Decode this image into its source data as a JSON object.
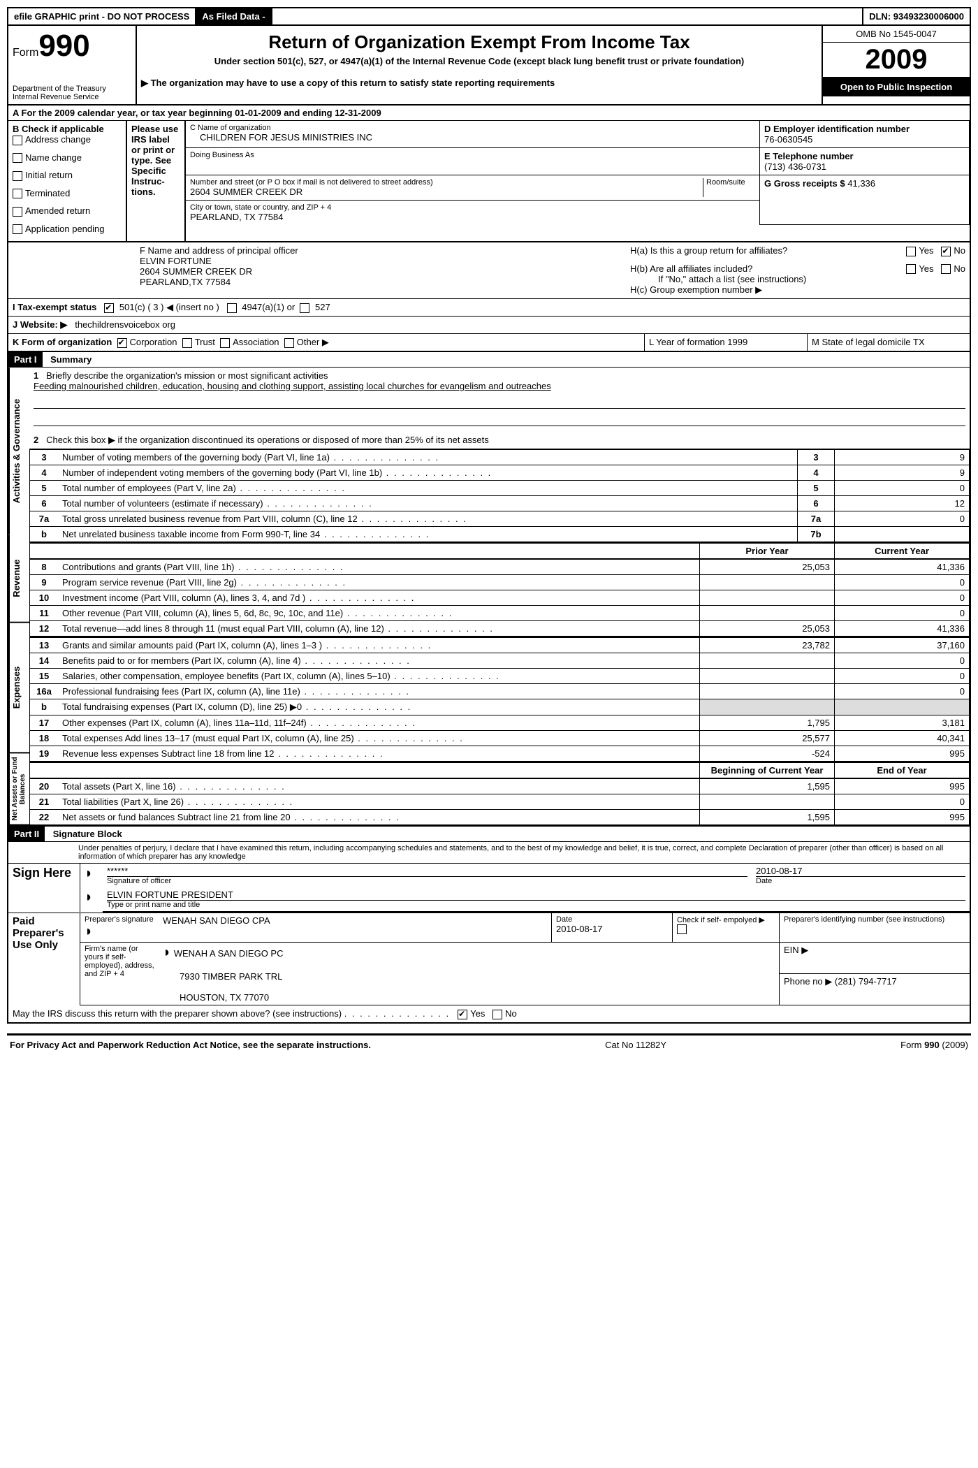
{
  "topbar": {
    "efile": "efile GRAPHIC print - DO NOT PROCESS",
    "asfiled": "As Filed Data -",
    "dln_label": "DLN:",
    "dln": "93493230006000"
  },
  "header": {
    "form_label": "Form",
    "form_number": "990",
    "dept1": "Department of the Treasury",
    "dept2": "Internal Revenue Service",
    "title": "Return of Organization Exempt From Income Tax",
    "subtitle": "Under section 501(c), 527, or 4947(a)(1) of the Internal Revenue Code (except black lung benefit trust or private foundation)",
    "copy_note": "▶ The organization may have to use a copy of this return to satisfy state reporting requirements",
    "omb": "OMB No 1545-0047",
    "year": "2009",
    "inspection": "Open to Public Inspection"
  },
  "lineA": "A  For the 2009 calendar year, or tax year beginning 01-01-2009    and ending 12-31-2009",
  "boxB": {
    "title": "B  Check if applicable",
    "items": [
      "Address change",
      "Name change",
      "Initial return",
      "Terminated",
      "Amended return",
      "Application pending"
    ],
    "irs_note": "Please use IRS label or print or type. See Specific Instruc- tions."
  },
  "boxC": {
    "name_label": "C Name of organization",
    "name": "CHILDREN FOR JESUS MINISTRIES INC",
    "dba_label": "Doing Business As",
    "street_label": "Number and street (or P O  box if mail is not delivered to street address)",
    "room_label": "Room/suite",
    "street": "2604 SUMMER CREEK DR",
    "city_label": "City or town, state or country, and ZIP + 4",
    "city": "PEARLAND, TX  77584"
  },
  "boxD": {
    "label": "D Employer identification number",
    "value": "76-0630545"
  },
  "boxE": {
    "label": "E Telephone number",
    "value": "(713) 436-0731"
  },
  "boxG": {
    "label": "G Gross receipts $",
    "value": "41,336"
  },
  "boxF": {
    "label": "F   Name and address of principal officer",
    "name": "ELVIN FORTUNE",
    "street": "2604 SUMMER CREEK DR",
    "city": "PEARLAND,TX  77584"
  },
  "boxH": {
    "ha": "H(a)  Is this a group return for affiliates?",
    "hb": "H(b)  Are all affiliates included?",
    "hb_note": "If \"No,\" attach a list  (see instructions)",
    "hc": "H(c)   Group exemption number ▶"
  },
  "lineI": {
    "label": "I   Tax-exempt status",
    "opt1": "501(c) ( 3 ) ◀ (insert no )",
    "opt2": "4947(a)(1) or",
    "opt3": "527"
  },
  "lineJ": {
    "label": "J   Website: ▶",
    "value": "thechildrensvoicebox org"
  },
  "lineK": {
    "label": "K Form of organization",
    "opts": [
      "Corporation",
      "Trust",
      "Association",
      "Other ▶"
    ],
    "L": "L Year of formation  1999",
    "M": "M State of legal domicile  TX"
  },
  "part1": {
    "header": "Part I",
    "title": "Summary",
    "section_gov": "Activities & Governance",
    "section_rev": "Revenue",
    "section_exp": "Expenses",
    "section_net": "Net Assets or Fund Balances",
    "line1_label": "Briefly describe the organization's mission or most significant activities",
    "line1_text": "Feeding malnourished children, education, housing and clothing support, assisting local churches for evangelism and outreaches",
    "line2": "Check this box ▶      if the organization discontinued its operations or disposed of more than 25% of its net assets",
    "rows_gov": [
      {
        "n": "3",
        "label": "Number of voting members of the governing body (Part VI, line 1a)",
        "box": "3",
        "val": "9"
      },
      {
        "n": "4",
        "label": "Number of independent voting members of the governing body (Part VI, line 1b)",
        "box": "4",
        "val": "9"
      },
      {
        "n": "5",
        "label": "Total number of employees (Part V, line 2a)",
        "box": "5",
        "val": "0"
      },
      {
        "n": "6",
        "label": "Total number of volunteers (estimate if necessary)",
        "box": "6",
        "val": "12"
      },
      {
        "n": "7a",
        "label": "Total gross unrelated business revenue from Part VIII, column (C), line 12",
        "box": "7a",
        "val": "0"
      },
      {
        "n": "b",
        "label": "Net unrelated business taxable income from Form 990-T, line 34",
        "box": "7b",
        "val": ""
      }
    ],
    "col_prior": "Prior Year",
    "col_current": "Current Year",
    "rows_rev": [
      {
        "n": "8",
        "label": "Contributions and grants (Part VIII, line 1h)",
        "p": "25,053",
        "c": "41,336"
      },
      {
        "n": "9",
        "label": "Program service revenue (Part VIII, line 2g)",
        "p": "",
        "c": "0"
      },
      {
        "n": "10",
        "label": "Investment income (Part VIII, column (A), lines 3, 4, and 7d )",
        "p": "",
        "c": "0"
      },
      {
        "n": "11",
        "label": "Other revenue (Part VIII, column (A), lines 5, 6d, 8c, 9c, 10c, and 11e)",
        "p": "",
        "c": "0"
      },
      {
        "n": "12",
        "label": "Total revenue—add lines 8 through 11 (must equal Part VIII, column (A), line 12)",
        "p": "25,053",
        "c": "41,336"
      }
    ],
    "rows_exp": [
      {
        "n": "13",
        "label": "Grants and similar amounts paid (Part IX, column (A), lines 1–3 )",
        "p": "23,782",
        "c": "37,160"
      },
      {
        "n": "14",
        "label": "Benefits paid to or for members (Part IX, column (A), line 4)",
        "p": "",
        "c": "0"
      },
      {
        "n": "15",
        "label": "Salaries, other compensation, employee benefits (Part IX, column (A), lines 5–10)",
        "p": "",
        "c": "0"
      },
      {
        "n": "16a",
        "label": "Professional fundraising fees (Part IX, column (A), line 11e)",
        "p": "",
        "c": "0"
      },
      {
        "n": "b",
        "label": "Total fundraising expenses (Part IX, column (D), line 25) ▶0",
        "p": "gray",
        "c": "gray"
      },
      {
        "n": "17",
        "label": "Other expenses (Part IX, column (A), lines 11a–11d, 11f–24f)",
        "p": "1,795",
        "c": "3,181"
      },
      {
        "n": "18",
        "label": "Total expenses  Add lines 13–17 (must equal Part IX, column (A), line 25)",
        "p": "25,577",
        "c": "40,341"
      },
      {
        "n": "19",
        "label": "Revenue less expenses  Subtract line 18 from line 12",
        "p": "-524",
        "c": "995"
      }
    ],
    "col_begin": "Beginning of Current Year",
    "col_end": "End of Year",
    "rows_net": [
      {
        "n": "20",
        "label": "Total assets (Part X, line 16)",
        "p": "1,595",
        "c": "995"
      },
      {
        "n": "21",
        "label": "Total liabilities (Part X, line 26)",
        "p": "",
        "c": "0"
      },
      {
        "n": "22",
        "label": "Net assets or fund balances  Subtract line 21 from line 20",
        "p": "1,595",
        "c": "995"
      }
    ]
  },
  "part2": {
    "header": "Part II",
    "title": "Signature Block",
    "perjury": "Under penalties of perjury, I declare that I have examined this return, including accompanying schedules and statements, and to the best of my knowledge and belief, it is true, correct, and complete  Declaration of preparer (other than officer) is based on all information of which preparer has any knowledge",
    "sign_here": "Sign Here",
    "sig_mask": "******",
    "sig_officer": "Signature of officer",
    "sig_date": "2010-08-17",
    "date_label": "Date",
    "name_title": "ELVIN FORTUNE PRESIDENT",
    "name_title_label": "Type or print name and title",
    "paid": "Paid Preparer's Use Only",
    "prep_sig": "Preparer's signature",
    "prep_name": "WENAH SAN DIEGO CPA",
    "prep_date_label": "Date",
    "prep_date": "2010-08-17",
    "check_self": "Check if self- empolyed ▶",
    "prep_id": "Preparer's identifying number (see instructions)",
    "firm_label": "Firm's name (or yours if self-employed), address, and ZIP + 4",
    "firm_name": "WENAH A SAN DIEGO PC",
    "firm_addr1": "7930 TIMBER PARK TRL",
    "firm_addr2": "HOUSTON, TX  77070",
    "ein": "EIN ▶",
    "phone": "Phone no  ▶  (281) 794-7717",
    "discuss": "May the IRS discuss this return with the preparer shown above? (see instructions)"
  },
  "footer": {
    "privacy": "For Privacy Act and Paperwork Reduction Act Notice, see the separate instructions.",
    "cat": "Cat  No  11282Y",
    "form": "Form 990 (2009)"
  },
  "yes": "Yes",
  "no": "No"
}
